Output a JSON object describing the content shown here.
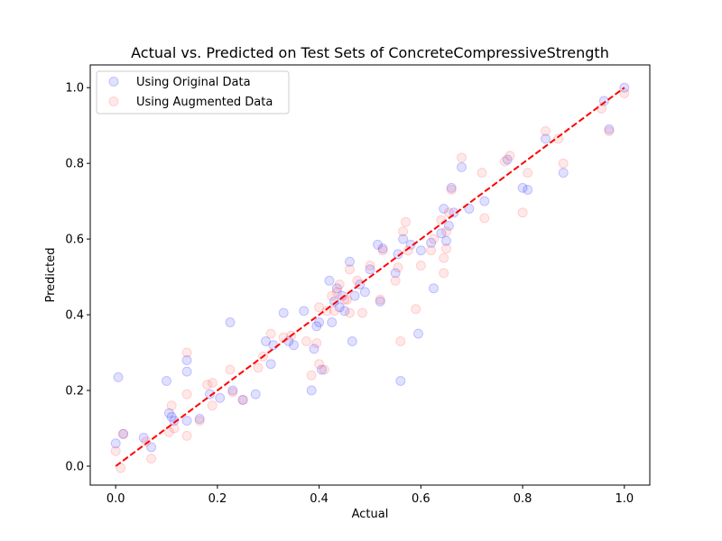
{
  "chart_data": {
    "type": "scatter",
    "title": "Actual vs. Predicted on Test Sets of ConcreteCompressiveStrength",
    "xlabel": "Actual",
    "ylabel": "Predicted",
    "xlim": [
      -0.05,
      1.05
    ],
    "ylim": [
      -0.05,
      1.06
    ],
    "xticks": [
      "0.0",
      "0.2",
      "0.4",
      "0.6",
      "0.8",
      "1.0"
    ],
    "yticks": [
      "0.0",
      "0.2",
      "0.4",
      "0.6",
      "0.8",
      "1.0"
    ],
    "grid": false,
    "legend_position": "top-left",
    "reference_line": {
      "x": [
        0,
        1
      ],
      "y": [
        0,
        1
      ],
      "color": "#ff0000",
      "style": "dashed"
    },
    "series": [
      {
        "name": "Using Original Data",
        "color": "#0000ff",
        "points": [
          [
            0.0,
            0.06
          ],
          [
            0.005,
            0.235
          ],
          [
            0.015,
            0.085
          ],
          [
            0.055,
            0.075
          ],
          [
            0.07,
            0.05
          ],
          [
            0.1,
            0.225
          ],
          [
            0.105,
            0.14
          ],
          [
            0.11,
            0.13
          ],
          [
            0.115,
            0.12
          ],
          [
            0.14,
            0.25
          ],
          [
            0.14,
            0.28
          ],
          [
            0.14,
            0.12
          ],
          [
            0.165,
            0.125
          ],
          [
            0.185,
            0.19
          ],
          [
            0.205,
            0.18
          ],
          [
            0.225,
            0.38
          ],
          [
            0.23,
            0.2
          ],
          [
            0.25,
            0.175
          ],
          [
            0.275,
            0.19
          ],
          [
            0.295,
            0.33
          ],
          [
            0.305,
            0.27
          ],
          [
            0.31,
            0.32
          ],
          [
            0.33,
            0.405
          ],
          [
            0.34,
            0.33
          ],
          [
            0.35,
            0.32
          ],
          [
            0.37,
            0.41
          ],
          [
            0.385,
            0.2
          ],
          [
            0.39,
            0.31
          ],
          [
            0.395,
            0.37
          ],
          [
            0.4,
            0.38
          ],
          [
            0.405,
            0.255
          ],
          [
            0.42,
            0.49
          ],
          [
            0.425,
            0.38
          ],
          [
            0.43,
            0.435
          ],
          [
            0.435,
            0.47
          ],
          [
            0.44,
            0.42
          ],
          [
            0.445,
            0.45
          ],
          [
            0.45,
            0.41
          ],
          [
            0.46,
            0.54
          ],
          [
            0.465,
            0.33
          ],
          [
            0.47,
            0.45
          ],
          [
            0.48,
            0.48
          ],
          [
            0.49,
            0.46
          ],
          [
            0.5,
            0.52
          ],
          [
            0.515,
            0.585
          ],
          [
            0.52,
            0.435
          ],
          [
            0.525,
            0.575
          ],
          [
            0.55,
            0.51
          ],
          [
            0.555,
            0.56
          ],
          [
            0.56,
            0.225
          ],
          [
            0.565,
            0.6
          ],
          [
            0.58,
            0.585
          ],
          [
            0.595,
            0.35
          ],
          [
            0.6,
            0.57
          ],
          [
            0.62,
            0.59
          ],
          [
            0.625,
            0.47
          ],
          [
            0.64,
            0.615
          ],
          [
            0.645,
            0.68
          ],
          [
            0.65,
            0.595
          ],
          [
            0.655,
            0.635
          ],
          [
            0.66,
            0.735
          ],
          [
            0.665,
            0.67
          ],
          [
            0.68,
            0.79
          ],
          [
            0.695,
            0.68
          ],
          [
            0.725,
            0.7
          ],
          [
            0.77,
            0.81
          ],
          [
            0.8,
            0.735
          ],
          [
            0.81,
            0.73
          ],
          [
            0.845,
            0.865
          ],
          [
            0.88,
            0.775
          ],
          [
            0.96,
            0.965
          ],
          [
            0.97,
            0.89
          ],
          [
            1.0,
            1.0
          ]
        ]
      },
      {
        "name": "Using Augmented Data",
        "color": "#ff4040",
        "points": [
          [
            0.0,
            0.04
          ],
          [
            0.01,
            -0.005
          ],
          [
            0.015,
            0.085
          ],
          [
            0.06,
            0.065
          ],
          [
            0.07,
            0.02
          ],
          [
            0.105,
            0.09
          ],
          [
            0.11,
            0.16
          ],
          [
            0.115,
            0.1
          ],
          [
            0.14,
            0.3
          ],
          [
            0.14,
            0.19
          ],
          [
            0.14,
            0.08
          ],
          [
            0.165,
            0.12
          ],
          [
            0.18,
            0.215
          ],
          [
            0.19,
            0.16
          ],
          [
            0.19,
            0.22
          ],
          [
            0.225,
            0.255
          ],
          [
            0.23,
            0.195
          ],
          [
            0.25,
            0.175
          ],
          [
            0.28,
            0.26
          ],
          [
            0.29,
            0.29
          ],
          [
            0.305,
            0.35
          ],
          [
            0.33,
            0.34
          ],
          [
            0.345,
            0.345
          ],
          [
            0.375,
            0.33
          ],
          [
            0.385,
            0.24
          ],
          [
            0.395,
            0.325
          ],
          [
            0.4,
            0.27
          ],
          [
            0.4,
            0.42
          ],
          [
            0.41,
            0.255
          ],
          [
            0.415,
            0.41
          ],
          [
            0.425,
            0.45
          ],
          [
            0.43,
            0.41
          ],
          [
            0.435,
            0.46
          ],
          [
            0.44,
            0.48
          ],
          [
            0.45,
            0.44
          ],
          [
            0.455,
            0.44
          ],
          [
            0.46,
            0.52
          ],
          [
            0.46,
            0.405
          ],
          [
            0.475,
            0.49
          ],
          [
            0.485,
            0.405
          ],
          [
            0.5,
            0.53
          ],
          [
            0.52,
            0.44
          ],
          [
            0.525,
            0.57
          ],
          [
            0.55,
            0.49
          ],
          [
            0.555,
            0.525
          ],
          [
            0.56,
            0.33
          ],
          [
            0.565,
            0.62
          ],
          [
            0.57,
            0.645
          ],
          [
            0.575,
            0.57
          ],
          [
            0.59,
            0.415
          ],
          [
            0.6,
            0.53
          ],
          [
            0.62,
            0.57
          ],
          [
            0.625,
            0.6
          ],
          [
            0.64,
            0.65
          ],
          [
            0.645,
            0.51
          ],
          [
            0.645,
            0.55
          ],
          [
            0.65,
            0.62
          ],
          [
            0.65,
            0.575
          ],
          [
            0.655,
            0.67
          ],
          [
            0.66,
            0.73
          ],
          [
            0.68,
            0.815
          ],
          [
            0.72,
            0.775
          ],
          [
            0.725,
            0.655
          ],
          [
            0.765,
            0.805
          ],
          [
            0.775,
            0.82
          ],
          [
            0.8,
            0.67
          ],
          [
            0.81,
            0.775
          ],
          [
            0.845,
            0.885
          ],
          [
            0.87,
            0.865
          ],
          [
            0.88,
            0.8
          ],
          [
            0.955,
            0.945
          ],
          [
            0.97,
            0.885
          ],
          [
            1.0,
            0.985
          ]
        ]
      }
    ]
  }
}
